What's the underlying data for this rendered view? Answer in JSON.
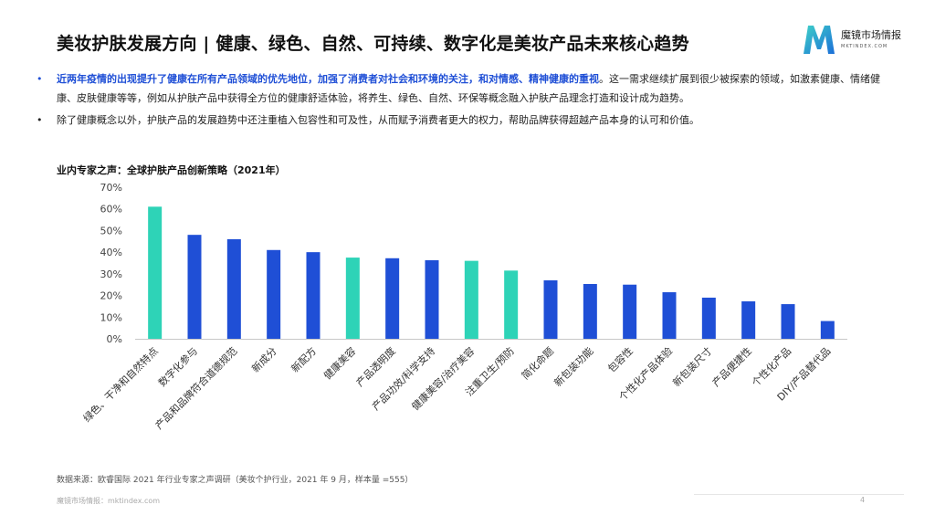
{
  "title": "美妆护肤发展方向 | 健康、绿色、自然、可持续、数字化是美妆产品未来核心趋势",
  "logo": {
    "name": "魔镜市场情报",
    "url": "MKTINDEX.COM"
  },
  "bullets": [
    {
      "highlight": "近两年疫情的出现提升了健康在所有产品领域的优先地位，加强了消费者对社会和环境的关注，和对情感、精神健康的重视",
      "rest": "。这一需求继续扩展到很少被探索的领域，如激素健康、情绪健康、皮肤健康等等，例如从护肤产品中获得全方位的健康舒适体验，将养生、绿色、自然、环保等概念融入护肤产品理念打造和设计成为趋势。"
    },
    {
      "text": "除了健康概念以外，护肤产品的发展趋势中还注重植入包容性和可及性，从而赋予消费者更大的权力，帮助品牌获得超越产品本身的认可和价值。"
    }
  ],
  "bullet_dot": "•",
  "chart_title": "业内专家之声：全球护肤产品创新策略（2021年）",
  "colors": {
    "accent": "#1f4fd6",
    "teal": "#2ed3b7",
    "highlight_bg": "#e3f8f4"
  },
  "chart_data": {
    "type": "bar",
    "title": "业内专家之声：全球护肤产品创新策略（2021年）",
    "categories": [
      "绿色、干净和自然特点",
      "数字化参与",
      "产品和品牌符合道德规范",
      "新成分",
      "新配方",
      "健康美容",
      "产品透明度",
      "产品功效/科学支持",
      "健康美容/治疗美容",
      "注重卫生/预防",
      "简化命题",
      "新包装功能",
      "包容性",
      "个性化产品体验",
      "新包装尺寸",
      "产品便捷性",
      "个性化产品",
      "DIY/产品替代品"
    ],
    "values": [
      61,
      48,
      46,
      41,
      40,
      37.5,
      37.2,
      36.3,
      36,
      31.5,
      27,
      25.3,
      25,
      21.5,
      19,
      17.3,
      16,
      8.2
    ],
    "highlighted": [
      true,
      false,
      false,
      false,
      false,
      true,
      false,
      false,
      true,
      true,
      false,
      false,
      false,
      false,
      false,
      false,
      false,
      false
    ],
    "ylim": [
      0,
      70
    ],
    "yticks": [
      "0%",
      "10%",
      "20%",
      "30%",
      "40%",
      "50%",
      "60%",
      "70%"
    ],
    "grid": false
  },
  "source": "数据来源：欧睿国际 2021 年行业专家之声调研（美妆个护行业，2021 年 9 月，样本量 =555）",
  "footer": "魔镜市场情报：mktindex.com",
  "page_number": "4"
}
